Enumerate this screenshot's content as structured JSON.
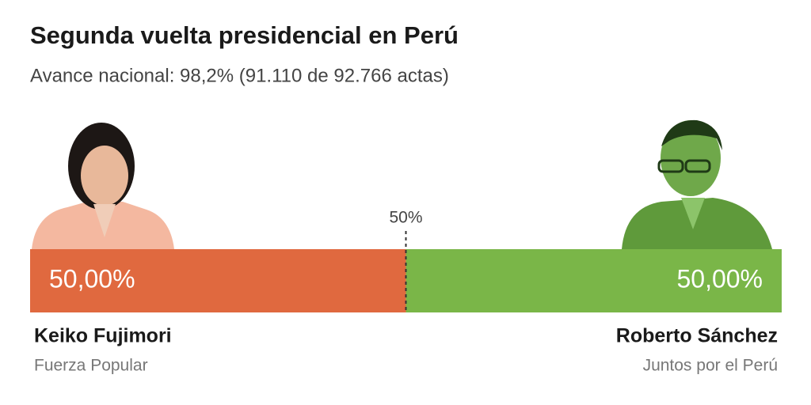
{
  "chart_data": {
    "type": "stacked-bar",
    "title": "Segunda vuelta presidencial en Perú",
    "subtitle": "Avance nacional: 98,2% (91.110 de 92.766 actas)",
    "xlim": [
      0,
      100
    ],
    "xticks": [
      {
        "value": 50,
        "label": "50%"
      }
    ],
    "series": [
      {
        "name": "Keiko Fujimori",
        "party": "Fuerza Popular",
        "color": "#e0693f",
        "values": [
          50
        ],
        "value_labels": [
          "50,00%"
        ]
      },
      {
        "name": "Roberto Sánchez",
        "party": "Juntos por el Perú",
        "color": "#7ab648",
        "values": [
          50
        ],
        "value_labels": [
          "50,00%"
        ]
      }
    ]
  }
}
